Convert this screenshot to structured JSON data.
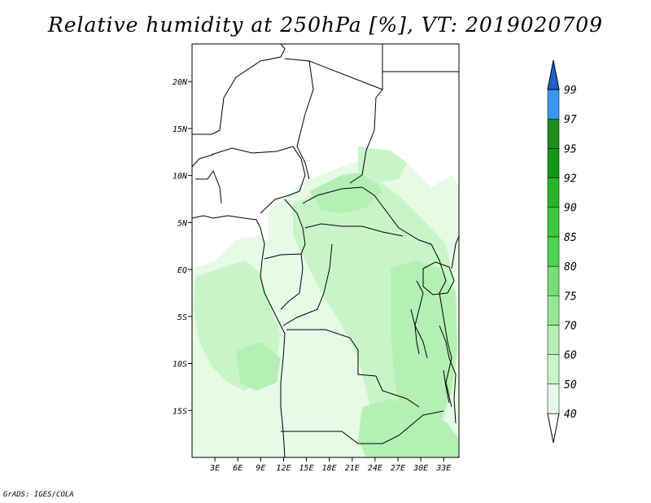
{
  "title": "Relative humidity at 250hPa [%], VT: 2019020709",
  "credit": "GrADS: IGES/COLA",
  "map": {
    "lon_range": [
      0,
      35
    ],
    "lat_range": [
      -20,
      24
    ],
    "lat_ticks": [
      {
        "value": 20,
        "label": "20N"
      },
      {
        "value": 15,
        "label": "15N"
      },
      {
        "value": 10,
        "label": "10N"
      },
      {
        "value": 5,
        "label": "5N"
      },
      {
        "value": 0,
        "label": "EQ"
      },
      {
        "value": -5,
        "label": "5S"
      },
      {
        "value": -10,
        "label": "10S"
      },
      {
        "value": -15,
        "label": "15S"
      }
    ],
    "lon_ticks": [
      {
        "value": 3,
        "label": "3E"
      },
      {
        "value": 6,
        "label": "6E"
      },
      {
        "value": 9,
        "label": "9E"
      },
      {
        "value": 12,
        "label": "12E"
      },
      {
        "value": 15,
        "label": "15E"
      },
      {
        "value": 18,
        "label": "18E"
      },
      {
        "value": 21,
        "label": "21E"
      },
      {
        "value": 24,
        "label": "24E"
      },
      {
        "value": 27,
        "label": "27E"
      },
      {
        "value": 30,
        "label": "30E"
      },
      {
        "value": 33,
        "label": "33E"
      }
    ]
  },
  "colorbar": {
    "levels": [
      {
        "label": "40",
        "color": "#e6fae6"
      },
      {
        "label": "50",
        "color": "#c8f5c8"
      },
      {
        "label": "60",
        "color": "#b4f0b4"
      },
      {
        "label": "70",
        "color": "#96e696"
      },
      {
        "label": "75",
        "color": "#78dc78"
      },
      {
        "label": "80",
        "color": "#50d250"
      },
      {
        "label": "85",
        "color": "#3cc83c"
      },
      {
        "label": "90",
        "color": "#28b428"
      },
      {
        "label": "92",
        "color": "#149614"
      },
      {
        "label": "95",
        "color": "#1e8c1e"
      },
      {
        "label": "97",
        "color": "#3c96f0"
      },
      {
        "label": "99",
        "color": "#2878dc"
      }
    ],
    "below_color": "#ffffff",
    "above_color": "#1e64c8"
  }
}
